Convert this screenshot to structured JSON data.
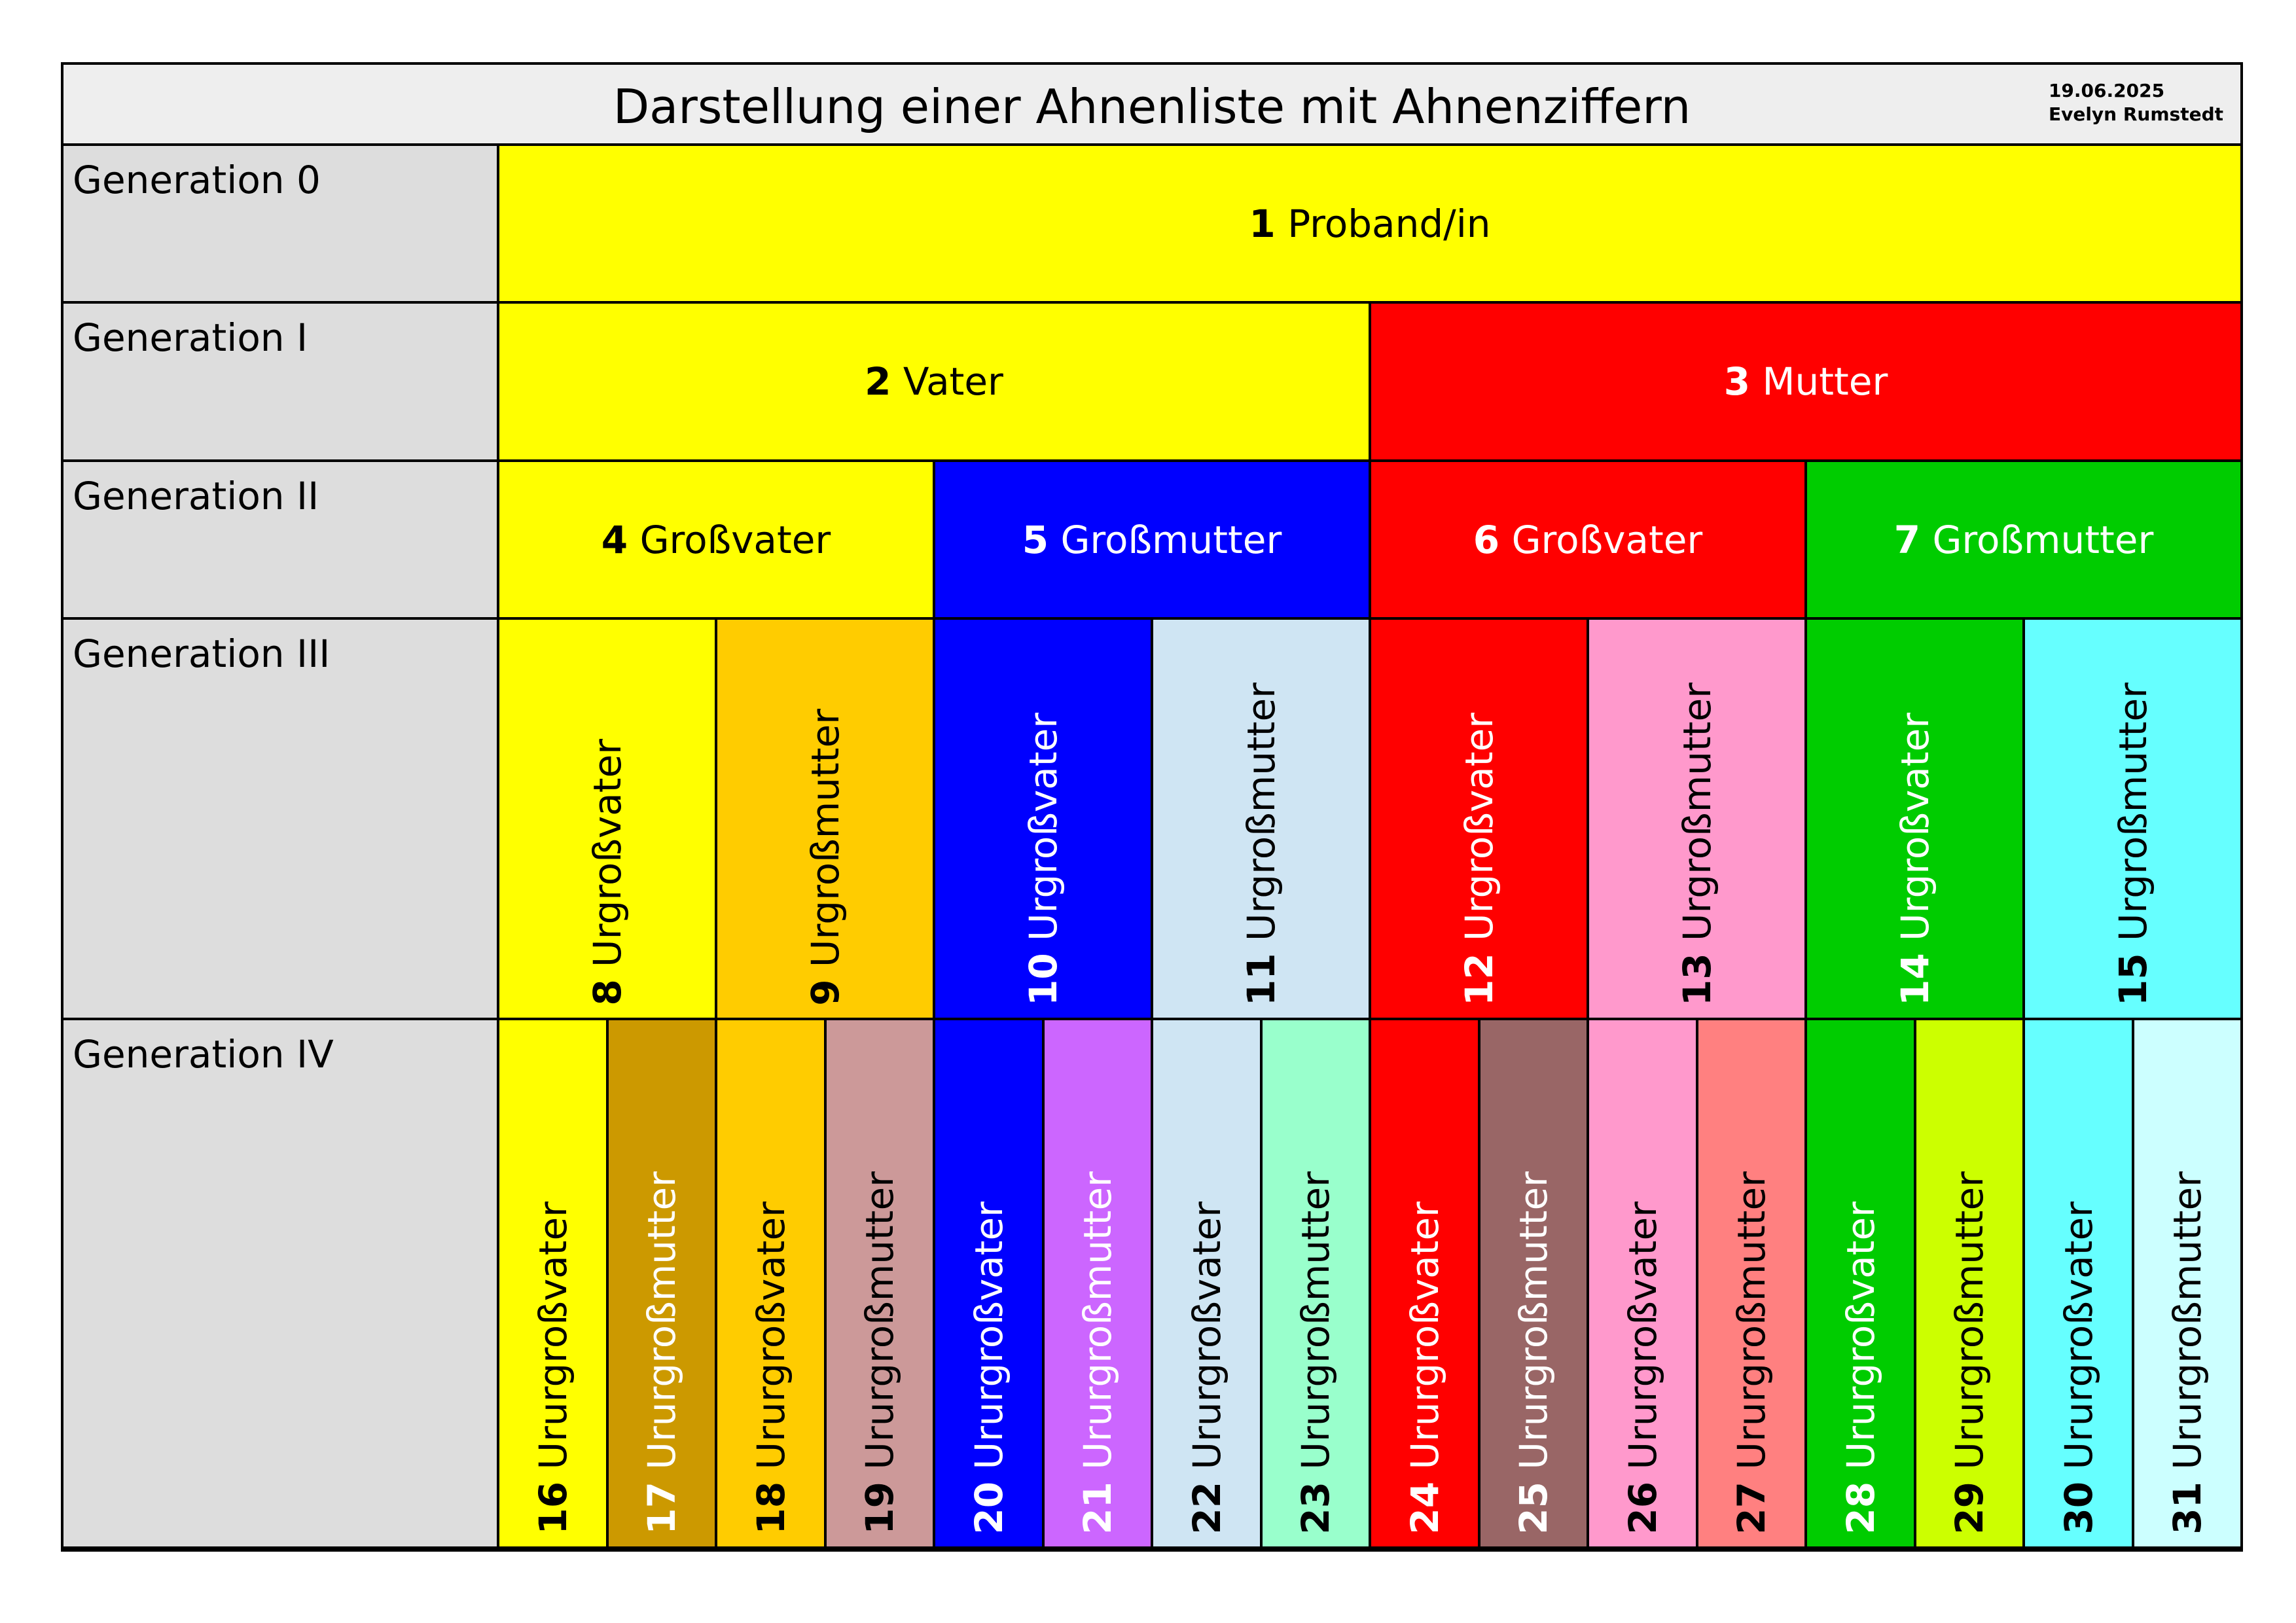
{
  "title": "Darstellung einer Ahnenliste mit Ahnenziffern",
  "date": "19.06.2025",
  "author": "Evelyn Rumstedt",
  "generations": [
    {
      "label": "Generation 0",
      "ancestors": [
        {
          "number": "1",
          "name": "Proband/in",
          "color": "#ffff00",
          "text_color": "#000000"
        }
      ]
    },
    {
      "label": "Generation I",
      "ancestors": [
        {
          "number": "2",
          "name": "Vater",
          "color": "#ffff00",
          "text_color": "#000000"
        },
        {
          "number": "3",
          "name": "Mutter",
          "color": "#ff0000",
          "text_color": "#ffffff"
        }
      ]
    },
    {
      "label": "Generation II",
      "ancestors": [
        {
          "number": "4",
          "name": "Großvater",
          "color": "#ffff00",
          "text_color": "#000000"
        },
        {
          "number": "5",
          "name": "Großmutter",
          "color": "#0000ff",
          "text_color": "#ffffff"
        },
        {
          "number": "6",
          "name": "Großvater",
          "color": "#ff0000",
          "text_color": "#ffffff"
        },
        {
          "number": "7",
          "name": "Großmutter",
          "color": "#00cc00",
          "text_color": "#ffffff"
        }
      ]
    },
    {
      "label": "Generation III",
      "ancestors": [
        {
          "number": "8",
          "name": "Urgroßvater",
          "color": "#ffff00",
          "text_color": "#000000"
        },
        {
          "number": "9",
          "name": "Urgroßmutter",
          "color": "#ffcc00",
          "text_color": "#000000"
        },
        {
          "number": "10",
          "name": "Urgroßvater",
          "color": "#0000ff",
          "text_color": "#ffffff"
        },
        {
          "number": "11",
          "name": "Urgroßmutter",
          "color": "#cfe5f3",
          "text_color": "#000000"
        },
        {
          "number": "12",
          "name": "Urgroßvater",
          "color": "#ff0000",
          "text_color": "#ffffff"
        },
        {
          "number": "13",
          "name": "Urgroßmutter",
          "color": "#ff99cc",
          "text_color": "#000000"
        },
        {
          "number": "14",
          "name": "Urgroßvater",
          "color": "#00cc00",
          "text_color": "#ffffff"
        },
        {
          "number": "15",
          "name": "Urgroßmutter",
          "color": "#66ffff",
          "text_color": "#000000"
        }
      ]
    },
    {
      "label": "Generation IV",
      "ancestors": [
        {
          "number": "16",
          "name": "Ururgroßvater",
          "color": "#ffff00",
          "text_color": "#000000"
        },
        {
          "number": "17",
          "name": "Ururgroßmutter",
          "color": "#cc9900",
          "text_color": "#ffffff"
        },
        {
          "number": "18",
          "name": "Ururgroßvater",
          "color": "#ffcc00",
          "text_color": "#000000"
        },
        {
          "number": "19",
          "name": "Ururgroßmutter",
          "color": "#cc9999",
          "text_color": "#000000"
        },
        {
          "number": "20",
          "name": "Ururgroßvater",
          "color": "#0000ff",
          "text_color": "#ffffff"
        },
        {
          "number": "21",
          "name": "Ururgroßmutter",
          "color": "#cc66ff",
          "text_color": "#ffffff"
        },
        {
          "number": "22",
          "name": "Ururgroßvater",
          "color": "#cfe5f3",
          "text_color": "#000000"
        },
        {
          "number": "23",
          "name": "Ururgroßmutter",
          "color": "#99ffcc",
          "text_color": "#000000"
        },
        {
          "number": "24",
          "name": "Ururgroßvater",
          "color": "#ff0000",
          "text_color": "#ffffff"
        },
        {
          "number": "25",
          "name": "Ururgroßmutter",
          "color": "#996666",
          "text_color": "#ffffff"
        },
        {
          "number": "26",
          "name": "Ururgroßvater",
          "color": "#ff99cc",
          "text_color": "#000000"
        },
        {
          "number": "27",
          "name": "Ururgroßmutter",
          "color": "#ff8080",
          "text_color": "#000000"
        },
        {
          "number": "28",
          "name": "Ururgroßvater",
          "color": "#00cc00",
          "text_color": "#ffffff"
        },
        {
          "number": "29",
          "name": "Ururgroßmutter",
          "color": "#ccff00",
          "text_color": "#000000"
        },
        {
          "number": "30",
          "name": "Ururgroßvater",
          "color": "#66ffff",
          "text_color": "#000000"
        },
        {
          "number": "31",
          "name": "Ururgroßmutter",
          "color": "#ccffff",
          "text_color": "#000000"
        }
      ]
    }
  ]
}
